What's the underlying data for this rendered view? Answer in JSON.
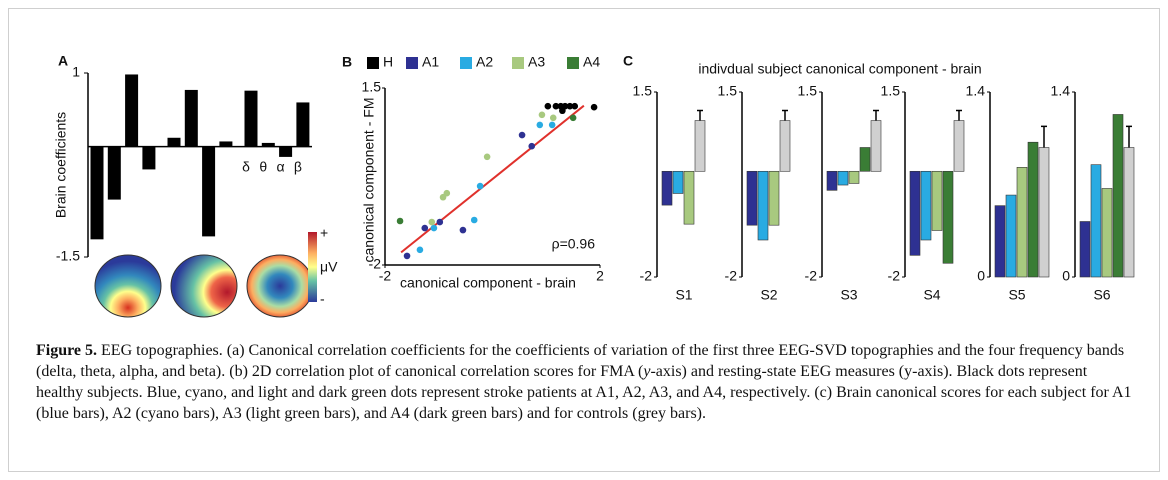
{
  "chart_data": [
    {
      "type": "bar",
      "panel": "A",
      "ylabel": "Brain coefficients",
      "ylim": [
        -1.5,
        1
      ],
      "yticks": [
        -1.5,
        1
      ],
      "categories": [
        null,
        null,
        null,
        null,
        null,
        null,
        null,
        null,
        "δ",
        "θ",
        "α",
        "β"
      ],
      "values": [
        -1.26,
        -0.72,
        0.98,
        -0.31,
        0.12,
        0.77,
        -1.22,
        0.07,
        0.76,
        0.05,
        -0.14,
        0.6
      ],
      "color": "#000000",
      "colorbar_labels": [
        "+",
        "μV",
        "-"
      ]
    },
    {
      "type": "scatter",
      "panel": "B",
      "xlabel": "canonical component - brain",
      "ylabel": "canonical component - FM",
      "xlim": [
        -2,
        2
      ],
      "ylim": [
        -2,
        1.5
      ],
      "xticks": [
        -2,
        2
      ],
      "yticks": [
        -2,
        1.5
      ],
      "legend": "top",
      "annotation": "ρ=0.96",
      "fit_line": {
        "x": [
          -1.7,
          1.7
        ],
        "y": [
          -1.75,
          1.15
        ],
        "color": "#e0312c"
      },
      "series": [
        {
          "name": "H",
          "color": "#000000",
          "x": [
            1.03,
            1.18,
            1.27,
            1.35,
            1.44,
            1.53,
            1.89,
            1.3
          ],
          "y": [
            1.14,
            1.14,
            1.14,
            1.14,
            1.14,
            1.14,
            1.12,
            1.05
          ]
        },
        {
          "name": "A1",
          "color": "#2e3192",
          "x": [
            -1.59,
            -1.26,
            -0.98,
            -0.55,
            0.55,
            0.73
          ],
          "y": [
            -1.82,
            -1.27,
            -1.15,
            -1.31,
            0.57,
            0.35
          ]
        },
        {
          "name": "A2",
          "color": "#29abe2",
          "x": [
            -1.35,
            -1.09,
            -0.34,
            -0.23,
            0.88,
            1.11
          ],
          "y": [
            -1.7,
            -1.27,
            -1.11,
            -0.44,
            0.77,
            0.77
          ]
        },
        {
          "name": "A3",
          "color": "#a8c97f",
          "x": [
            -1.13,
            -0.92,
            -0.85,
            -0.1,
            0.92,
            1.13
          ],
          "y": [
            -1.15,
            -0.66,
            -0.58,
            0.14,
            0.97,
            0.91
          ]
        },
        {
          "name": "A4",
          "color": "#3a7d35",
          "x": [
            -1.72,
            1.5
          ],
          "y": [
            -1.13,
            0.91
          ]
        }
      ]
    },
    {
      "type": "bar",
      "xlabel": "S1",
      "ylim": [
        -2,
        1.5
      ],
      "yticks": [
        -2,
        1.5
      ],
      "values": [
        -0.64,
        -0.42,
        -1.0,
        null,
        0.96
      ],
      "errors": [
        null,
        null,
        null,
        null,
        0.19
      ],
      "colors": [
        "#2e3192",
        "#29abe2",
        "#a8c97f",
        "#3a7d35",
        "#d0d0d0"
      ]
    },
    {
      "type": "bar",
      "xlabel": "S2",
      "ylim": [
        -2,
        1.5
      ],
      "yticks": [
        -2,
        1.5
      ],
      "values": [
        -1.02,
        -1.3,
        -1.02,
        null,
        0.96
      ],
      "errors": [
        null,
        null,
        null,
        null,
        0.19
      ],
      "colors": [
        "#2e3192",
        "#29abe2",
        "#a8c97f",
        "#3a7d35",
        "#d0d0d0"
      ]
    },
    {
      "type": "bar",
      "xlabel": "S3",
      "ylim": [
        -2,
        1.5
      ],
      "yticks": [
        -2,
        1.5
      ],
      "values": [
        -0.36,
        -0.26,
        -0.23,
        0.45,
        0.96
      ],
      "errors": [
        null,
        null,
        null,
        null,
        0.19
      ],
      "colors": [
        "#2e3192",
        "#29abe2",
        "#a8c97f",
        "#3a7d35",
        "#d0d0d0"
      ]
    },
    {
      "type": "bar",
      "xlabel": "S4",
      "ylim": [
        -2,
        1.5
      ],
      "yticks": [
        -2,
        1.5
      ],
      "values": [
        -1.59,
        -1.3,
        -1.12,
        -1.74,
        0.96
      ],
      "errors": [
        null,
        null,
        null,
        null,
        0.19
      ],
      "colors": [
        "#2e3192",
        "#29abe2",
        "#a8c97f",
        "#3a7d35",
        "#d0d0d0"
      ]
    },
    {
      "type": "bar",
      "xlabel": "S5",
      "ylim": [
        0,
        1.4
      ],
      "yticks": [
        0,
        1.4
      ],
      "values": [
        0.54,
        0.62,
        0.83,
        1.02,
        0.98
      ],
      "errors": [
        null,
        null,
        null,
        null,
        0.16
      ],
      "colors": [
        "#2e3192",
        "#29abe2",
        "#a8c97f",
        "#3a7d35",
        "#d0d0d0"
      ]
    },
    {
      "type": "bar",
      "xlabel": "S6",
      "ylim": [
        0,
        1.4
      ],
      "yticks": [
        0,
        1.4
      ],
      "values": [
        0.42,
        0.85,
        0.67,
        1.23,
        0.98
      ],
      "errors": [
        null,
        null,
        null,
        null,
        0.16
      ],
      "colors": [
        "#2e3192",
        "#29abe2",
        "#a8c97f",
        "#3a7d35",
        "#d0d0d0"
      ]
    }
  ],
  "panel_c": {
    "panel": "C",
    "title": "indivdual subject canonical component - brain"
  },
  "caption": {
    "label": "Figure 5.",
    "segments": [
      "EEG topographies. (a) Canonical correlation coefficients for the coefficients of variation of the first three EEG-SVD topographies and the four frequency bands (delta, theta, alpha, and beta). (b) 2D correlation plot of canonical correlation scores for FMA (",
      "y",
      "-axis) and resting-state EEG measures (y-axis). Black dots represent healthy subjects. Blue, cyano, and light and dark green dots represent stroke patients at A1, A2, A3, and A4, respectively. (c) Brain canonical scores for each subject for A1 (blue bars), A2 (cyano bars), A3 (light green bars), and A4 (dark green bars) and for controls (grey bars)."
    ]
  }
}
